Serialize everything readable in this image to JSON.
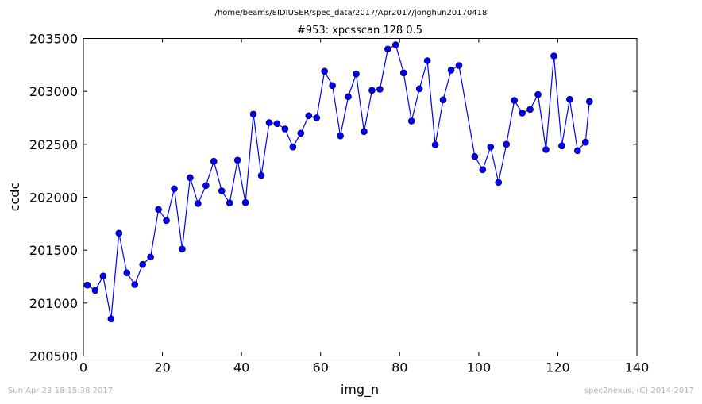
{
  "chart_data": {
    "type": "line",
    "suptitle": "/home/beams/8IDIUSER/spec_data/2017/Apr2017/jonghun20170418",
    "title": "#953: xpcsscan 128 0.5",
    "xlabel": "img_n",
    "ylabel": "ccdc",
    "xlim": [
      0,
      140
    ],
    "ylim": [
      200500,
      203500
    ],
    "xticks": [
      "0",
      "20",
      "40",
      "60",
      "80",
      "100",
      "120",
      "140"
    ],
    "yticks": [
      "200500",
      "201000",
      "201500",
      "202000",
      "202500",
      "203000",
      "203500"
    ],
    "grid": false,
    "series": [
      {
        "color": "#0000ff",
        "marker": "circle",
        "x": [
          1,
          3,
          5,
          7,
          9,
          11,
          13,
          15,
          17,
          19,
          21,
          23,
          25,
          27,
          29,
          31,
          33,
          35,
          37,
          39,
          41,
          43,
          45,
          47,
          49,
          51,
          53,
          55,
          57,
          59,
          61,
          63,
          65,
          67,
          69,
          71,
          73,
          75,
          77,
          79,
          81,
          83,
          85,
          87,
          89,
          91,
          93,
          95,
          99,
          101,
          103,
          105,
          107,
          109,
          111,
          113,
          115,
          117,
          119,
          121,
          123,
          125,
          127,
          128
        ],
        "y": [
          201170,
          201120,
          201255,
          200850,
          201660,
          201285,
          201175,
          201365,
          201435,
          201885,
          201780,
          202080,
          201510,
          202185,
          201940,
          202110,
          202340,
          202060,
          201945,
          202350,
          201950,
          202785,
          202205,
          202705,
          202695,
          202645,
          202475,
          202605,
          202770,
          202750,
          203190,
          203055,
          202580,
          202950,
          203165,
          202620,
          203010,
          203020,
          203400,
          203440,
          203175,
          202720,
          203025,
          203290,
          202495,
          202920,
          203200,
          203245,
          202385,
          202260,
          202475,
          202140,
          202500,
          202915,
          202795,
          202830,
          202970,
          202450,
          203335,
          202485,
          202925,
          202440,
          202520,
          202905
        ]
      }
    ]
  },
  "footer": {
    "timestamp": "Sun Apr 23 18:15:38 2017",
    "credit": "spec2nexus, (C) 2014-2017"
  }
}
